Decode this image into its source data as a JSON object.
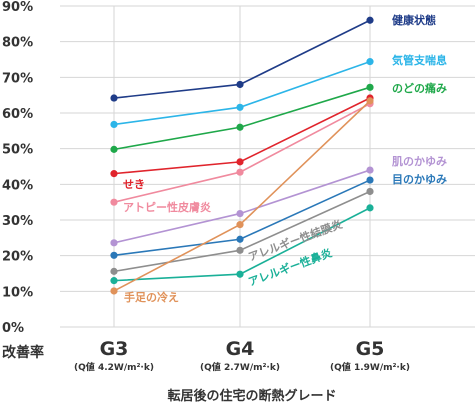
{
  "chart_data": {
    "type": "line",
    "title": "",
    "xlabel": "転居後の住宅の断熱グレード",
    "ylabel": "改善率",
    "categories": [
      "G3",
      "G4",
      "G5"
    ],
    "category_sublabels": [
      "(Q値 4.2W/m²·k)",
      "(Q値 2.7W/m²·k)",
      "(Q値 1.9W/m²·k)"
    ],
    "ylim": [
      0,
      90
    ],
    "yticks": [
      "0%",
      "10%",
      "20%",
      "30%",
      "40%",
      "50%",
      "60%",
      "70%",
      "80%",
      "90%"
    ],
    "grid": true,
    "series": [
      {
        "name": "健康状態",
        "color": "#1f3c88",
        "values": [
          64.2,
          68.0,
          86.0
        ]
      },
      {
        "name": "気管支喘息",
        "color": "#2cb5e8",
        "values": [
          56.8,
          61.6,
          74.4
        ]
      },
      {
        "name": "のどの痛み",
        "color": "#1fa84a",
        "values": [
          49.8,
          56.0,
          67.2
        ]
      },
      {
        "name": "せき",
        "color": "#e0242c",
        "values": [
          43.0,
          46.3,
          64.2
        ]
      },
      {
        "name": "アトピー性皮膚炎",
        "color": "#f08a9e",
        "values": [
          35.0,
          43.4,
          62.6
        ]
      },
      {
        "name": "肌のかゆみ",
        "color": "#b393d3",
        "values": [
          23.6,
          31.8,
          44.0
        ]
      },
      {
        "name": "目のかゆみ",
        "color": "#2a78b8",
        "values": [
          20.1,
          24.6,
          41.2
        ]
      },
      {
        "name": "アレルギー性結膜炎",
        "color": "#8e8e8e",
        "values": [
          15.6,
          21.5,
          38.0
        ]
      },
      {
        "name": "アレルギー性鼻炎",
        "color": "#1ab098",
        "values": [
          13.0,
          14.8,
          33.4
        ]
      },
      {
        "name": "手足の冷え",
        "color": "#e0925a",
        "values": [
          10.1,
          28.7,
          63.4
        ]
      }
    ]
  }
}
